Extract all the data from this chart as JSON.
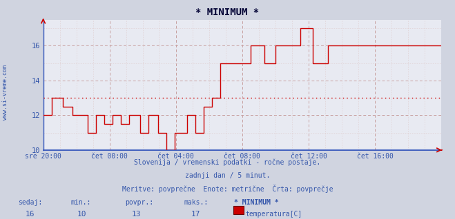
{
  "title": "* MINIMUM *",
  "bg_color": "#d0d4e0",
  "plot_bg_color": "#e8eaf2",
  "grid_color_major": "#c8a0a0",
  "grid_color_minor": "#ddc8c8",
  "line_color": "#cc0000",
  "avg_line_color": "#cc0000",
  "avg_value": 13,
  "x_start_hour": 20,
  "x_end_hour": 44,
  "x_ticks": [
    20,
    24,
    28,
    32,
    36,
    40,
    44
  ],
  "x_tick_labels": [
    "sre 20:00",
    "čet 00:00",
    "čet 04:00",
    "čet 08:00",
    "čet 12:00",
    "čet 16:00",
    ""
  ],
  "ylim": [
    10,
    17.5
  ],
  "y_ticks": [
    10,
    12,
    14,
    16
  ],
  "subtitle1": "Slovenija / vremenski podatki - ročne postaje.",
  "subtitle2": "zadnji dan / 5 minut.",
  "subtitle3": "Meritve: povprečne  Enote: metrične  Črta: povprečje",
  "label_sedaj": "sedaj:",
  "label_min": "min.:",
  "label_povpr": "povpr.:",
  "label_maks": "maks.:",
  "val_sedaj": "16",
  "val_min": "10",
  "val_povpr": "13",
  "val_maks": "17",
  "legend_title": "* MINIMUM *",
  "legend_label": "temperatura[C]",
  "watermark": "www.si-vreme.com",
  "temp_data_x": [
    20.0,
    20.08,
    20.5,
    20.92,
    21.17,
    21.67,
    21.75,
    22.58,
    22.67,
    23.08,
    23.17,
    23.58,
    23.67,
    24.08,
    24.17,
    24.58,
    24.67,
    25.08,
    25.17,
    25.75,
    25.83,
    26.25,
    26.33,
    26.83,
    26.92,
    27.33,
    27.42,
    27.83,
    27.92,
    28.25,
    28.42,
    28.58,
    28.67,
    29.08,
    29.17,
    29.58,
    29.67,
    30.08,
    30.17,
    30.58,
    30.67,
    31.0,
    31.5,
    32.0,
    32.5,
    33.0,
    33.33,
    33.83,
    34.0,
    35.0,
    35.5,
    36.17,
    36.25,
    37.0,
    37.17,
    44.0
  ],
  "temp_data_y": [
    12.0,
    12.0,
    13.0,
    13.0,
    12.5,
    12.5,
    12.0,
    12.0,
    11.0,
    11.0,
    12.0,
    12.0,
    11.5,
    11.5,
    12.0,
    12.0,
    11.5,
    11.5,
    12.0,
    12.0,
    11.0,
    11.0,
    12.0,
    12.0,
    11.0,
    11.0,
    10.0,
    10.0,
    11.0,
    11.0,
    11.0,
    11.0,
    12.0,
    12.0,
    11.0,
    11.0,
    12.5,
    12.5,
    13.0,
    13.0,
    15.0,
    15.0,
    15.0,
    15.0,
    16.0,
    16.0,
    15.0,
    15.0,
    16.0,
    16.0,
    17.0,
    17.0,
    15.0,
    15.0,
    16.0,
    16.0
  ]
}
